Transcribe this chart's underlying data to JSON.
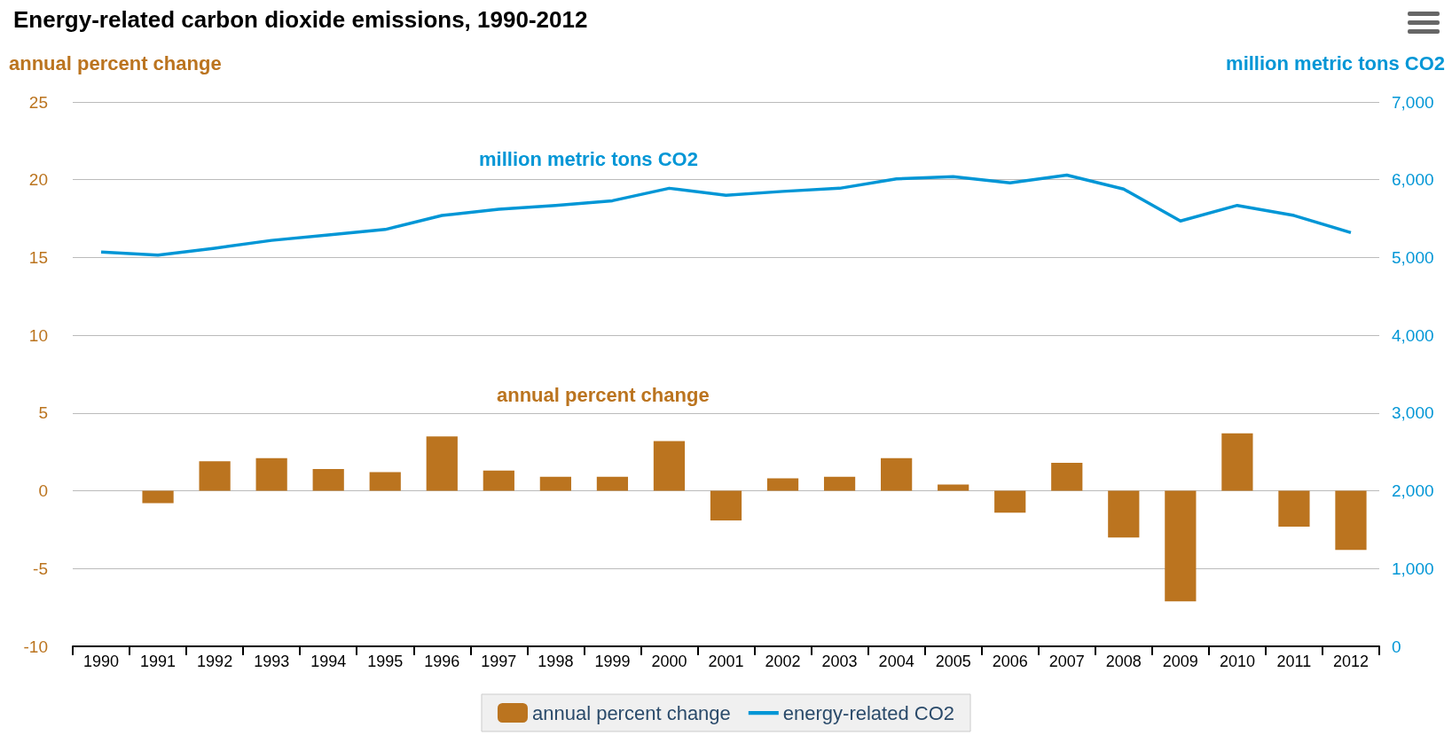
{
  "chart_data": {
    "type": "bar",
    "title": "Energy-related carbon dioxide emissions, 1990-2012",
    "ylabel": "annual percent change",
    "y2label": "million metric tons CO2",
    "categories": [
      "1990",
      "1991",
      "1992",
      "1993",
      "1994",
      "1995",
      "1996",
      "1997",
      "1998",
      "1999",
      "2000",
      "2001",
      "2002",
      "2003",
      "2004",
      "2005",
      "2006",
      "2007",
      "2008",
      "2009",
      "2010",
      "2011",
      "2012"
    ],
    "series": [
      {
        "name": "annual percent change",
        "color": "#bb741f",
        "values": [
          null,
          -0.8,
          1.9,
          2.1,
          1.4,
          1.2,
          3.5,
          1.3,
          0.9,
          0.9,
          3.2,
          -1.9,
          0.8,
          0.9,
          2.1,
          0.4,
          -1.4,
          1.8,
          -3.0,
          -7.1,
          3.7,
          -2.3,
          -3.8
        ]
      },
      {
        "name": "energy-related CO2",
        "type": "line",
        "axis": "y2",
        "color": "#0096d6",
        "values": [
          5070,
          5030,
          5120,
          5220,
          5290,
          5360,
          5540,
          5620,
          5670,
          5730,
          5890,
          5800,
          5850,
          5890,
          6010,
          6040,
          5960,
          6060,
          5880,
          5470,
          5670,
          5540,
          5320
        ]
      }
    ],
    "annotations": [
      "million metric tons CO2",
      "annual percent change"
    ],
    "ylim": [
      -10,
      25
    ],
    "yticks": [
      -10,
      -5,
      0,
      5,
      10,
      15,
      20,
      25
    ],
    "y2lim": [
      0,
      7000
    ],
    "y2ticks": [
      0,
      {
        "value": 1000,
        "label": "1,000"
      },
      {
        "value": 2000,
        "label": "2,000"
      },
      {
        "value": 3000,
        "label": "3,000"
      },
      {
        "value": 4000,
        "label": "4,000"
      },
      {
        "value": 5000,
        "label": "5,000"
      },
      {
        "value": 6000,
        "label": "6,000"
      },
      {
        "value": 7000,
        "label": "7,000"
      }
    ],
    "grid": "y",
    "legend": "bottom",
    "marker": "none",
    "line_style": "solid"
  }
}
